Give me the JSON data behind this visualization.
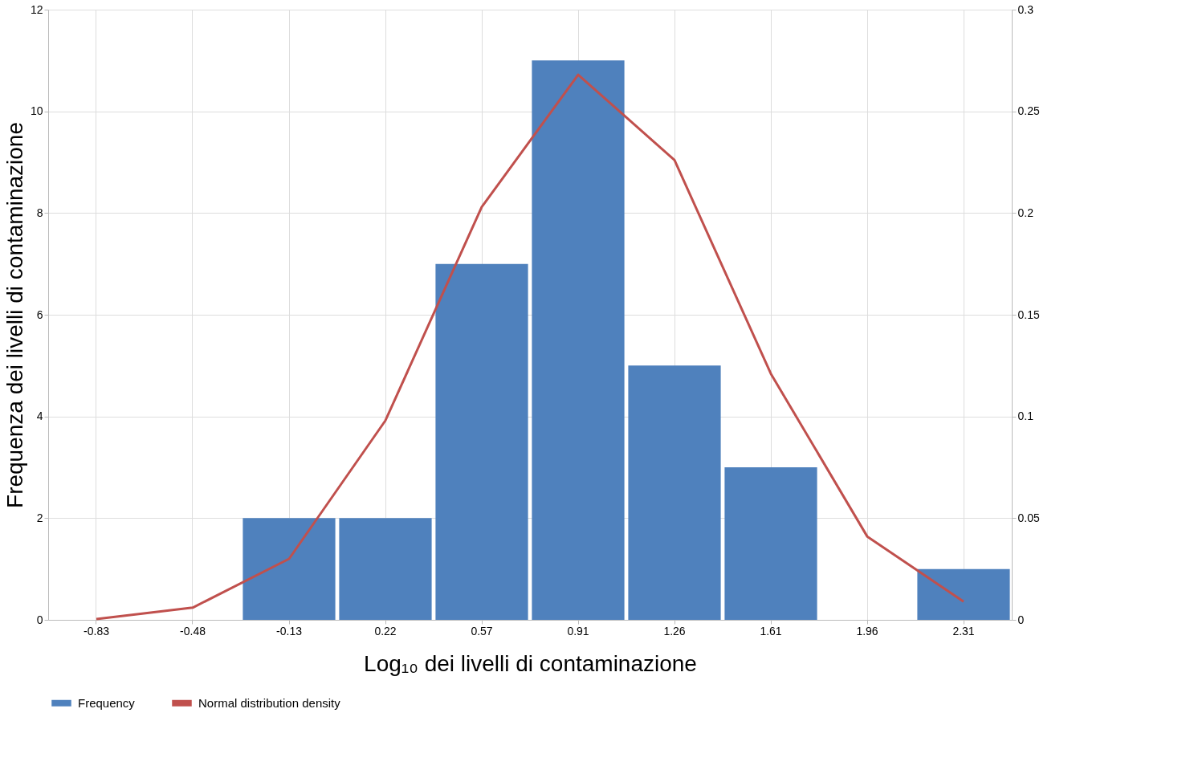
{
  "chart_data": {
    "type": "bar",
    "xlabel": "Log₁₀ dei livelli di contaminazione",
    "ylabel": "Frequenza dei livelli di contaminazione",
    "categories": [
      "-0.83",
      "-0.48",
      "-0.13",
      "0.22",
      "0.57",
      "0.91",
      "1.26",
      "1.61",
      "1.96",
      "2.31"
    ],
    "series": [
      {
        "name": "Frequency",
        "color": "#4f81bd",
        "values": [
          0,
          0,
          2,
          2,
          7,
          11,
          5,
          3,
          0,
          1
        ]
      },
      {
        "name": "Normal distribution density",
        "type": "line",
        "axis": "y2",
        "color": "#c0504d",
        "values": [
          0.0004,
          0.006,
          0.03,
          0.098,
          0.203,
          0.268,
          0.226,
          0.121,
          0.041,
          0.009
        ]
      }
    ],
    "ylim": [
      0,
      12
    ],
    "yticks": [
      0,
      2,
      4,
      6,
      8,
      10,
      12
    ],
    "y2lim": [
      0,
      0.3
    ],
    "y2ticks": [
      0,
      0.05,
      0.1,
      0.15,
      0.2,
      0.25,
      0.3
    ],
    "grid": true,
    "legend": "bottom",
    "marker": "none",
    "line_style": "solid"
  }
}
